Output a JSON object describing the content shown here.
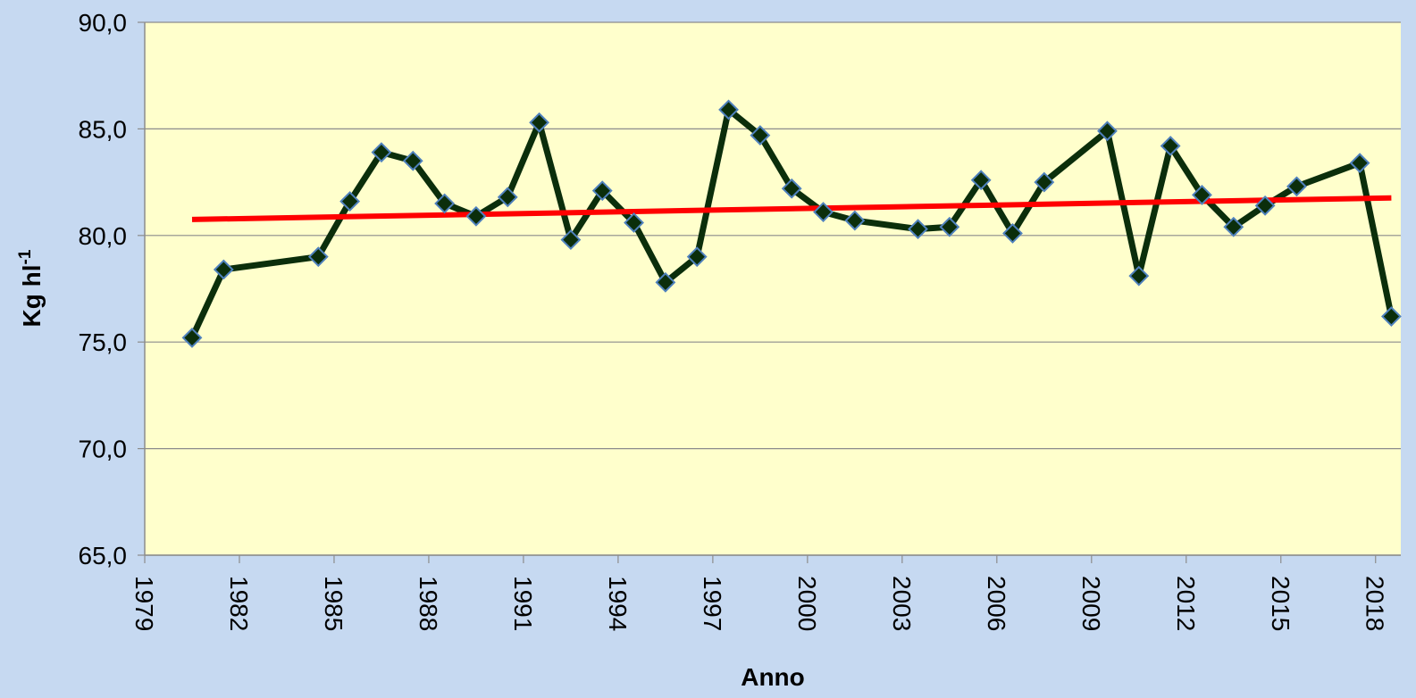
{
  "chart_data": {
    "type": "line",
    "xlabel": "Anno",
    "ylabel": "Kg hl",
    "ylabel_superscript": "-1",
    "x": [
      1980.5,
      1981.5,
      1984.5,
      1985.5,
      1986.5,
      1987.5,
      1988.5,
      1989.5,
      1990.5,
      1991.5,
      1992.5,
      1993.5,
      1994.5,
      1995.5,
      1996.5,
      1997.5,
      1998.5,
      1999.5,
      2000.5,
      2001.5,
      2003.5,
      2004.5,
      2005.5,
      2006.5,
      2007.5,
      2009.5,
      2010.5,
      2011.5,
      2012.5,
      2013.5,
      2014.5,
      2015.5,
      2017.5,
      2018.5
    ],
    "series": [
      {
        "color": "#0b2e0b",
        "marker_edge_color": "#4f81bd",
        "values": [
          75.2,
          78.4,
          79.0,
          81.6,
          83.9,
          83.5,
          81.5,
          80.9,
          81.8,
          85.3,
          79.8,
          82.1,
          80.6,
          77.8,
          79.0,
          85.9,
          84.7,
          82.2,
          81.1,
          80.7,
          80.3,
          80.4,
          82.6,
          80.1,
          82.5,
          84.9,
          78.1,
          84.2,
          81.9,
          80.4,
          81.4,
          82.3,
          83.4,
          76.2
        ]
      }
    ],
    "trendline": {
      "color": "#ff0000",
      "x": [
        1980.5,
        2018.5
      ],
      "values": [
        80.75,
        81.76
      ]
    },
    "xlim": [
      1979,
      2018.8
    ],
    "xticks": [
      1979,
      1982,
      1985,
      1988,
      1991,
      1994,
      1997,
      2000,
      2003,
      2006,
      2009,
      2012,
      2015,
      2018
    ],
    "ylim": [
      65,
      90
    ],
    "yticks": [
      {
        "value": 65,
        "label": "65,0"
      },
      {
        "value": 70,
        "label": "70,0"
      },
      {
        "value": 75,
        "label": "75,0"
      },
      {
        "value": 80,
        "label": "80,0"
      },
      {
        "value": 85,
        "label": "85,0"
      },
      {
        "value": 90,
        "label": "90,0"
      }
    ],
    "grid": true
  }
}
